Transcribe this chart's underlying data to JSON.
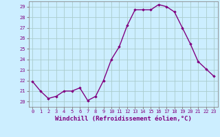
{
  "x": [
    0,
    1,
    2,
    3,
    4,
    5,
    6,
    7,
    8,
    9,
    10,
    11,
    12,
    13,
    14,
    15,
    16,
    17,
    18,
    19,
    20,
    21,
    22,
    23
  ],
  "y": [
    21.9,
    21.0,
    20.3,
    20.5,
    21.0,
    21.0,
    21.3,
    20.1,
    20.5,
    22.0,
    24.0,
    25.2,
    27.2,
    28.7,
    28.7,
    28.7,
    29.2,
    29.0,
    28.5,
    27.0,
    25.5,
    23.8,
    23.1,
    22.4
  ],
  "line_color": "#800080",
  "marker": "D",
  "marker_size": 1.8,
  "line_width": 1.0,
  "xlabel": "Windchill (Refroidissement éolien,°C)",
  "ylim": [
    19.5,
    29.5
  ],
  "xlim": [
    -0.5,
    23.5
  ],
  "yticks": [
    20,
    21,
    22,
    23,
    24,
    25,
    26,
    27,
    28,
    29
  ],
  "xticks": [
    0,
    1,
    2,
    3,
    4,
    5,
    6,
    7,
    8,
    9,
    10,
    11,
    12,
    13,
    14,
    15,
    16,
    17,
    18,
    19,
    20,
    21,
    22,
    23
  ],
  "bg_color": "#cceeff",
  "grid_color": "#aacccc",
  "tick_label_color": "#800080",
  "xlabel_color": "#800080",
  "tick_fontsize": 5.0,
  "xlabel_fontsize": 6.5,
  "spine_color": "#888888"
}
